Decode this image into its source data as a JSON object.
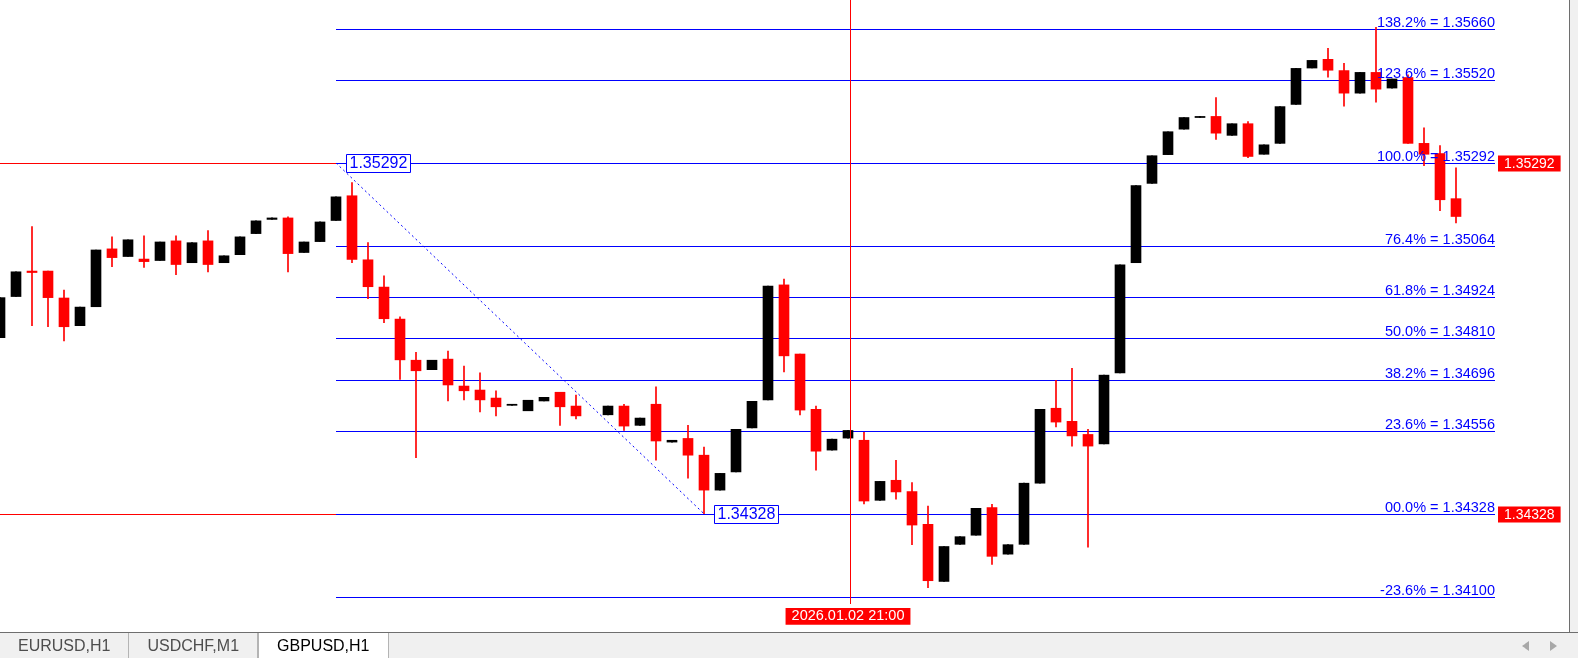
{
  "chart_data": {
    "type": "candlestick",
    "title": "GBPUSD,H1",
    "annotations": [
      "EURUSD,H1",
      "USDCHF,M1"
    ],
    "categories": [
      null,
      null,
      null,
      null,
      null,
      null,
      null,
      null,
      null,
      null,
      null,
      null,
      null,
      null,
      null,
      null,
      null,
      null,
      null,
      null,
      null,
      null,
      null,
      null,
      null,
      null,
      null,
      null,
      null,
      null,
      null,
      null,
      null,
      null,
      null,
      null,
      null,
      null,
      null,
      null,
      null,
      null,
      null,
      null,
      null,
      null,
      null,
      null,
      null,
      null,
      null,
      null,
      null,
      "2026.01.02 21:00",
      null,
      null,
      null,
      null,
      null,
      null,
      null,
      null,
      null,
      null,
      null,
      null,
      null,
      null,
      null,
      null,
      null,
      null,
      null,
      null,
      null,
      null,
      null,
      null,
      null,
      null,
      null,
      null,
      null,
      null,
      null,
      null,
      null,
      null,
      null,
      null,
      null,
      null
    ],
    "ohlc": [
      [
        1.34812,
        1.34922,
        1.34812,
        1.34922
      ],
      [
        1.34925,
        1.34993,
        1.34925,
        1.34993
      ],
      [
        1.34995,
        1.35117,
        1.34845,
        1.34991
      ],
      [
        1.34995,
        1.34995,
        1.34842,
        1.34922
      ],
      [
        1.34921,
        1.34943,
        1.34803,
        1.34842
      ],
      [
        1.34845,
        1.34896,
        1.34845,
        1.34896
      ],
      [
        1.34897,
        1.35053,
        1.34897,
        1.35053
      ],
      [
        1.35056,
        1.35089,
        1.35007,
        1.35032
      ],
      [
        1.35035,
        1.35081,
        1.35035,
        1.35081
      ],
      [
        1.35028,
        1.35092,
        1.35005,
        1.35021
      ],
      [
        1.35024,
        1.35075,
        1.35024,
        1.35075
      ],
      [
        1.35078,
        1.35092,
        1.34985,
        1.35013
      ],
      [
        1.35018,
        1.35073,
        1.35018,
        1.35073
      ],
      [
        1.35078,
        1.35106,
        1.34993,
        1.35013
      ],
      [
        1.35018,
        1.35037,
        1.35018,
        1.35037
      ],
      [
        1.3504,
        1.35089,
        1.3504,
        1.35089
      ],
      [
        1.35098,
        1.35133,
        1.35098,
        1.35133
      ],
      [
        1.35137,
        1.35141,
        1.35137,
        1.35141
      ],
      [
        1.35141,
        1.35144,
        1.34993,
        1.35043
      ],
      [
        1.35046,
        1.35075,
        1.35046,
        1.35075
      ],
      [
        1.35076,
        1.3513,
        1.35076,
        1.3513
      ],
      [
        1.35134,
        1.35199,
        1.35134,
        1.35199
      ],
      [
        1.35202,
        1.35238,
        1.35018,
        1.35027
      ],
      [
        1.35026,
        1.35073,
        1.34919,
        1.34952
      ],
      [
        1.34951,
        1.34982,
        1.34853,
        1.34864
      ],
      [
        1.34863,
        1.34869,
        1.34697,
        1.34751
      ],
      [
        1.3475,
        1.34772,
        1.34482,
        1.34721
      ],
      [
        1.34724,
        1.3475,
        1.34724,
        1.3475
      ],
      [
        1.34753,
        1.34775,
        1.34638,
        1.34682
      ],
      [
        1.34679,
        1.34734,
        1.34641,
        1.34666
      ],
      [
        1.34668,
        1.34715,
        1.34608,
        1.34641
      ],
      [
        1.34646,
        1.34666,
        1.34597,
        1.34622
      ],
      [
        1.34626,
        1.34629,
        1.34626,
        1.34629
      ],
      [
        1.34611,
        1.3464,
        1.34611,
        1.3464
      ],
      [
        1.34638,
        1.34648,
        1.34638,
        1.34648
      ],
      [
        1.34662,
        1.34662,
        1.34571,
        1.34622
      ],
      [
        1.34624,
        1.34654,
        1.34589,
        1.34597
      ],
      null,
      [
        1.346,
        1.34624,
        1.346,
        1.34624
      ],
      [
        1.34624,
        1.34629,
        1.34557,
        1.34569
      ],
      [
        1.34571,
        1.34591,
        1.34571,
        1.34591
      ],
      [
        1.34629,
        1.34677,
        1.34475,
        1.34528
      ],
      [
        1.34525,
        1.3453,
        1.34525,
        1.3453
      ],
      [
        1.34535,
        1.34571,
        1.34426,
        1.34489
      ],
      [
        1.34489,
        1.34511,
        1.34328,
        1.34393
      ],
      [
        1.34393,
        1.34439,
        1.34393,
        1.34439
      ],
      [
        1.34443,
        1.3456,
        1.34443,
        1.3456
      ],
      [
        1.34564,
        1.34637,
        1.34564,
        1.34637
      ],
      [
        1.34641,
        1.34954,
        1.34641,
        1.34954
      ],
      [
        1.34957,
        1.34973,
        1.34718,
        1.34762
      ],
      [
        1.34767,
        1.34767,
        1.346,
        1.34613
      ],
      [
        1.34615,
        1.34624,
        1.34448,
        1.345
      ],
      [
        1.34503,
        1.34533,
        1.34503,
        1.34533
      ],
      [
        1.34536,
        1.34557,
        1.34536,
        1.34557
      ],
      [
        1.3453,
        1.34552,
        1.34355,
        1.34363
      ],
      [
        1.34365,
        1.34417,
        1.34365,
        1.34417
      ],
      [
        1.3442,
        1.34475,
        1.34368,
        1.34388
      ],
      [
        1.34389,
        1.34414,
        1.34243,
        1.34297
      ],
      [
        1.34299,
        1.34349,
        1.34125,
        1.34144
      ],
      [
        1.34142,
        1.34238,
        1.34142,
        1.34238
      ],
      [
        1.34244,
        1.34265,
        1.34244,
        1.34265
      ],
      [
        1.34269,
        1.34343,
        1.34269,
        1.34343
      ],
      [
        1.34345,
        1.34354,
        1.34189,
        1.34211
      ],
      [
        1.34217,
        1.34243,
        1.34217,
        1.34243
      ],
      [
        1.34244,
        1.34412,
        1.34244,
        1.34412
      ],
      [
        1.34412,
        1.34615,
        1.34412,
        1.34615
      ],
      [
        1.34618,
        1.34695,
        1.34567,
        1.3458
      ],
      [
        1.34582,
        1.34728,
        1.34514,
        1.34542
      ],
      [
        1.34546,
        1.3456,
        1.34236,
        1.34514
      ],
      [
        1.3452,
        1.34709,
        1.3452,
        1.34709
      ],
      [
        1.34715,
        1.35012,
        1.34715,
        1.35012
      ],
      [
        1.35018,
        1.3523,
        1.35018,
        1.3523
      ],
      [
        1.35236,
        1.35312,
        1.35236,
        1.35312
      ],
      [
        1.35315,
        1.35378,
        1.35315,
        1.35378
      ],
      [
        1.35385,
        1.35417,
        1.35385,
        1.35417
      ],
      [
        1.35417,
        1.3542,
        1.35417,
        1.3542
      ],
      [
        1.3542,
        1.35472,
        1.35357,
        1.35374
      ],
      [
        1.35368,
        1.354,
        1.35368,
        1.354
      ],
      [
        1.354,
        1.35406,
        1.35307,
        1.3531
      ],
      [
        1.35316,
        1.35342,
        1.35316,
        1.35342
      ],
      [
        1.35346,
        1.35447,
        1.35346,
        1.35447
      ],
      [
        1.35453,
        1.35552,
        1.35453,
        1.35552
      ],
      [
        1.35553,
        1.35574,
        1.35553,
        1.35574
      ],
      [
        1.35577,
        1.35607,
        1.35528,
        1.35547
      ],
      [
        1.35546,
        1.35566,
        1.35448,
        1.35484
      ],
      [
        1.35484,
        1.35541,
        1.35484,
        1.35541
      ],
      [
        1.35541,
        1.35665,
        1.35459,
        1.35495
      ],
      [
        1.35498,
        1.35523,
        1.35498,
        1.35523
      ],
      [
        1.35527,
        1.35534,
        1.35346,
        1.35346
      ],
      [
        1.35346,
        1.35389,
        1.35285,
        1.35316
      ],
      [
        1.35318,
        1.3534,
        1.35161,
        1.35191
      ],
      [
        1.35194,
        1.35279,
        1.35127,
        1.35145
      ]
    ],
    "colors": [
      "#000000",
      "#000000",
      "#ff0000",
      "#ff0000",
      "#ff0000",
      "#000000",
      "#000000",
      "#ff0000",
      "#000000",
      "#ff0000",
      "#000000",
      "#ff0000",
      "#000000",
      "#ff0000",
      "#000000",
      "#000000",
      "#000000",
      "#000000",
      "#ff0000",
      "#000000",
      "#000000",
      "#000000",
      "#ff0000",
      "#ff0000",
      "#ff0000",
      "#ff0000",
      "#ff0000",
      "#000000",
      "#ff0000",
      "#ff0000",
      "#ff0000",
      "#ff0000",
      "#000000",
      "#000000",
      "#000000",
      "#ff0000",
      "#ff0000",
      null,
      "#000000",
      "#ff0000",
      "#000000",
      "#ff0000",
      "#000000",
      "#ff0000",
      "#ff0000",
      "#000000",
      "#000000",
      "#000000",
      "#000000",
      "#ff0000",
      "#ff0000",
      "#ff0000",
      "#000000",
      "#000000",
      "#ff0000",
      "#000000",
      "#ff0000",
      "#ff0000",
      "#ff0000",
      "#000000",
      "#000000",
      "#000000",
      "#ff0000",
      "#000000",
      "#000000",
      "#000000",
      "#ff0000",
      "#ff0000",
      "#ff0000",
      "#000000",
      "#000000",
      "#000000",
      "#000000",
      "#000000",
      "#000000",
      "#000000",
      "#ff0000",
      "#000000",
      "#ff0000",
      "#000000",
      "#000000",
      "#000000",
      "#000000",
      "#ff0000",
      "#ff0000",
      "#000000",
      "#ff0000",
      "#000000",
      "#ff0000",
      "#ff0000",
      "#ff0000",
      "#ff0000"
    ],
    "series": [
      {
        "type": "line",
        "color": "#0000ff",
        "line_style": "dotted",
        "values": [
          null,
          null,
          null,
          null,
          null,
          null,
          null,
          null,
          null,
          null,
          null,
          null,
          null,
          null,
          null,
          null,
          null,
          null,
          null,
          null,
          null,
          1.35292,
          null,
          null,
          null,
          null,
          null,
          null,
          null,
          null,
          null,
          null,
          null,
          null,
          null,
          null,
          null,
          null,
          null,
          null,
          null,
          null,
          null,
          null,
          1.34328,
          null,
          null,
          null,
          null,
          null,
          null,
          null,
          null,
          null,
          null,
          null,
          null,
          null,
          null,
          null,
          null,
          null,
          null,
          null,
          null,
          null,
          null,
          null,
          null,
          null,
          null,
          null,
          null,
          null,
          null,
          null,
          null,
          null,
          null,
          null,
          null,
          null,
          null,
          null,
          null,
          null,
          null,
          null,
          null,
          null,
          null,
          null
        ],
        "value_labels": [
          null,
          null,
          null,
          null,
          null,
          null,
          null,
          null,
          null,
          null,
          null,
          null,
          null,
          null,
          null,
          null,
          null,
          null,
          null,
          null,
          null,
          "1.35292",
          null,
          null,
          null,
          null,
          null,
          null,
          null,
          null,
          null,
          null,
          null,
          null,
          null,
          null,
          null,
          null,
          null,
          null,
          null,
          null,
          null,
          null,
          "1.34328",
          null,
          null,
          null,
          null,
          null,
          null,
          null,
          null,
          null,
          null,
          null,
          null,
          null,
          null,
          null,
          null,
          null,
          null,
          null,
          null,
          null,
          null,
          null,
          null,
          null,
          null,
          null,
          null,
          null,
          null,
          null,
          null,
          null,
          null,
          null,
          null,
          null,
          null,
          null,
          null,
          null,
          null,
          null,
          null,
          null,
          null,
          null
        ]
      }
    ],
    "ylim": [
      1.3408,
      1.3574
    ],
    "tick_labels": "x",
    "ref_lines": [
      {
        "axis": "y",
        "value": 1.35292,
        "label": "1.35292",
        "color": "#ff0000"
      },
      {
        "axis": "y",
        "value": 1.34328,
        "label": "1.34328",
        "color": "#ff0000"
      },
      {
        "axis": "x",
        "value": "2026.01.02 21:00",
        "color": "#ff0000"
      },
      {
        "axis": "y",
        "value": 1.3566,
        "label": "138.2% = 1.35660",
        "color": "#0000ff"
      },
      {
        "axis": "y",
        "value": 1.3552,
        "label": "123.6% = 1.35520",
        "color": "#0000ff"
      },
      {
        "axis": "y",
        "value": 1.35292,
        "label": "100.0% = 1.35292",
        "color": "#0000ff"
      },
      {
        "axis": "y",
        "value": 1.35064,
        "label": "76.4% = 1.35064",
        "color": "#0000ff"
      },
      {
        "axis": "y",
        "value": 1.34924,
        "label": "61.8% = 1.34924",
        "color": "#0000ff"
      },
      {
        "axis": "y",
        "value": 1.3481,
        "label": "50.0% = 1.34810",
        "color": "#0000ff"
      },
      {
        "axis": "y",
        "value": 1.34696,
        "label": "38.2% = 1.34696",
        "color": "#0000ff"
      },
      {
        "axis": "y",
        "value": 1.34556,
        "label": "23.6% = 1.34556",
        "color": "#0000ff"
      },
      {
        "axis": "y",
        "value": 1.34328,
        "label": "00.0% = 1.34328",
        "color": "#0000ff"
      },
      {
        "axis": "y",
        "value": 1.341,
        "label": "-23.6% = 1.34100",
        "color": "#0000ff"
      }
    ]
  }
}
